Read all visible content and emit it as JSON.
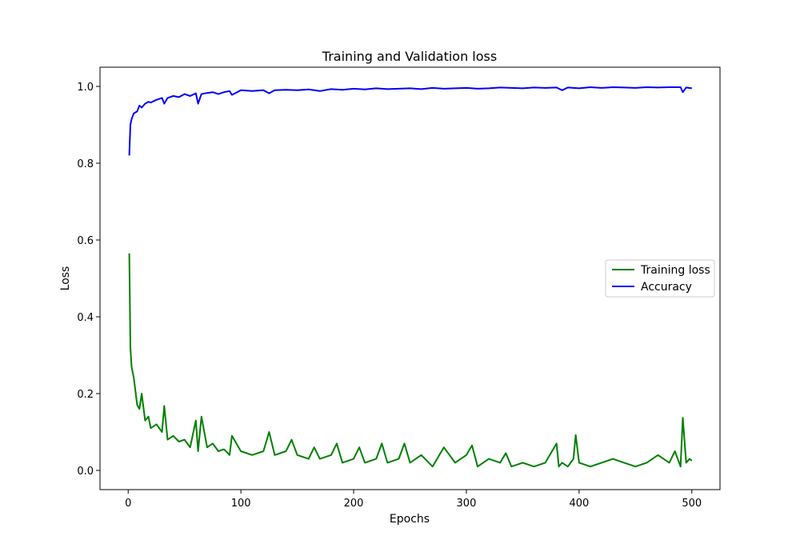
{
  "chart_data": {
    "type": "line",
    "title": "Training and Validation loss",
    "xlabel": "Epochs",
    "ylabel": "Loss",
    "xlim": [
      -25,
      525
    ],
    "ylim": [
      -0.05,
      1.05
    ],
    "xticks": [
      0,
      100,
      200,
      300,
      400,
      500
    ],
    "yticks": [
      0.0,
      0.2,
      0.4,
      0.6,
      0.8,
      1.0
    ],
    "xtick_labels": [
      "0",
      "100",
      "200",
      "300",
      "400",
      "500"
    ],
    "ytick_labels": [
      "0.0",
      "0.2",
      "0.4",
      "0.6",
      "0.8",
      "1.0"
    ],
    "grid": false,
    "legend_position": "center-right",
    "series": [
      {
        "name": "Training loss",
        "color": "#008000",
        "x": [
          1,
          2,
          3,
          5,
          8,
          10,
          12,
          15,
          18,
          20,
          25,
          30,
          32,
          35,
          40,
          45,
          50,
          55,
          60,
          62,
          65,
          70,
          75,
          80,
          85,
          90,
          92,
          100,
          110,
          120,
          125,
          130,
          140,
          145,
          150,
          160,
          165,
          170,
          180,
          185,
          190,
          200,
          205,
          210,
          220,
          225,
          230,
          240,
          245,
          250,
          260,
          270,
          280,
          290,
          300,
          305,
          310,
          320,
          330,
          335,
          340,
          350,
          360,
          370,
          380,
          382,
          385,
          390,
          395,
          397,
          400,
          410,
          420,
          430,
          440,
          450,
          460,
          470,
          480,
          485,
          490,
          492,
          495,
          498,
          500
        ],
        "values": [
          0.565,
          0.32,
          0.27,
          0.24,
          0.17,
          0.16,
          0.2,
          0.13,
          0.14,
          0.11,
          0.12,
          0.1,
          0.168,
          0.08,
          0.09,
          0.075,
          0.08,
          0.06,
          0.13,
          0.05,
          0.14,
          0.06,
          0.07,
          0.05,
          0.055,
          0.04,
          0.09,
          0.05,
          0.04,
          0.05,
          0.1,
          0.04,
          0.05,
          0.08,
          0.04,
          0.03,
          0.06,
          0.03,
          0.04,
          0.07,
          0.02,
          0.03,
          0.06,
          0.02,
          0.03,
          0.07,
          0.02,
          0.03,
          0.07,
          0.02,
          0.04,
          0.01,
          0.06,
          0.02,
          0.04,
          0.065,
          0.01,
          0.03,
          0.02,
          0.045,
          0.01,
          0.02,
          0.01,
          0.02,
          0.07,
          0.01,
          0.02,
          0.01,
          0.03,
          0.092,
          0.02,
          0.01,
          0.02,
          0.03,
          0.02,
          0.01,
          0.02,
          0.04,
          0.02,
          0.05,
          0.01,
          0.137,
          0.02,
          0.03,
          0.025
        ]
      },
      {
        "name": "Accuracy",
        "color": "#0000ff",
        "x": [
          1,
          2,
          3,
          5,
          8,
          10,
          12,
          15,
          18,
          20,
          25,
          30,
          32,
          35,
          40,
          45,
          50,
          55,
          60,
          62,
          65,
          70,
          75,
          80,
          85,
          90,
          92,
          100,
          110,
          120,
          125,
          130,
          140,
          150,
          160,
          170,
          180,
          190,
          200,
          210,
          220,
          230,
          240,
          250,
          260,
          270,
          280,
          290,
          300,
          310,
          320,
          330,
          340,
          350,
          360,
          370,
          380,
          385,
          390,
          400,
          410,
          420,
          430,
          440,
          450,
          460,
          470,
          480,
          490,
          492,
          495,
          500
        ],
        "values": [
          0.82,
          0.9,
          0.915,
          0.93,
          0.935,
          0.95,
          0.945,
          0.955,
          0.96,
          0.958,
          0.965,
          0.97,
          0.955,
          0.97,
          0.975,
          0.972,
          0.98,
          0.975,
          0.982,
          0.955,
          0.98,
          0.983,
          0.985,
          0.98,
          0.985,
          0.988,
          0.978,
          0.99,
          0.988,
          0.99,
          0.982,
          0.99,
          0.991,
          0.99,
          0.992,
          0.988,
          0.993,
          0.991,
          0.994,
          0.992,
          0.995,
          0.993,
          0.994,
          0.995,
          0.993,
          0.996,
          0.994,
          0.995,
          0.996,
          0.994,
          0.995,
          0.997,
          0.996,
          0.995,
          0.997,
          0.996,
          0.997,
          0.99,
          0.997,
          0.995,
          0.998,
          0.996,
          0.998,
          0.997,
          0.996,
          0.998,
          0.997,
          0.998,
          0.998,
          0.985,
          0.997,
          0.995
        ]
      }
    ]
  }
}
